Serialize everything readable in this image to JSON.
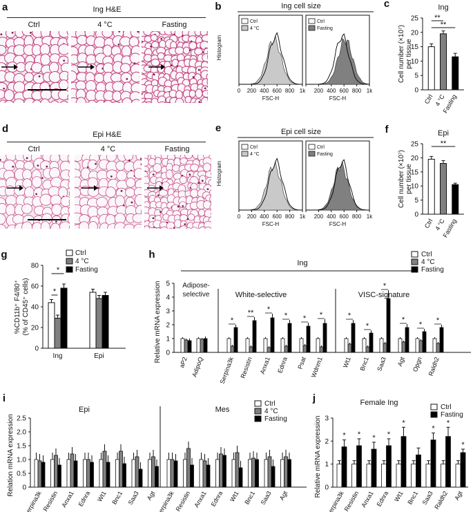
{
  "panels": {
    "a": {
      "letter": "a",
      "title": "Ing H&E",
      "labels": [
        "Ctrl",
        "4 °C",
        "Fasting"
      ]
    },
    "b": {
      "letter": "b",
      "title": "Ing cell size",
      "ylabel": "Histogram",
      "xlabel": "FSC-H",
      "ticks": [
        "0",
        "200",
        "400",
        "600",
        "800",
        "1k"
      ],
      "left_legend": [
        "Ctrl",
        "4 °C"
      ],
      "right_legend": [
        "Ctrl",
        "Fasting"
      ]
    },
    "c": {
      "letter": "c",
      "title": "Ing",
      "ylabel": "Cell number (×10⁷) per tissue"
    },
    "d": {
      "letter": "d",
      "title": "Epi H&E",
      "labels": [
        "Ctrl",
        "4 °C",
        "Fasting"
      ]
    },
    "e": {
      "letter": "e",
      "title": "Epi cell size",
      "ylabel": "Histogram",
      "xlabel": "FSC-H",
      "ticks": [
        "0",
        "200",
        "400",
        "600",
        "800",
        "1k"
      ],
      "left_legend": [
        "Ctrl",
        "4 °C"
      ],
      "right_legend": [
        "Ctrl",
        "Fasting"
      ]
    },
    "f": {
      "letter": "f",
      "title": "Epi",
      "ylabel": "Cell number (×10⁷) per tissue"
    },
    "g": {
      "letter": "g",
      "ylabel": "%CD11b⁺ F4/80⁺ (% of CD45⁺ cells)"
    },
    "h": {
      "letter": "h",
      "title": "Ing",
      "ylabel": "Relative mRNA expression",
      "groups": [
        "Adipose-selective",
        "White-selective",
        "VISC-signature"
      ]
    },
    "i": {
      "letter": "i",
      "ylabel": "Relation mRNA expression",
      "groups": [
        "Epi",
        "Mes"
      ]
    },
    "j": {
      "letter": "j",
      "title": "Female Ing",
      "ylabel": "Relative mRNA expression"
    }
  },
  "colors": {
    "ctrl": "#ffffff",
    "cold": "#808080",
    "fasting": "#000000",
    "he_bg": "#f3e9ef",
    "he_line": "#c23f7d"
  },
  "chart_data": [
    {
      "id": "c",
      "type": "bar",
      "title": "Ing",
      "ylabel": "Cell number (×10⁷) per tissue",
      "categories": [
        "Ctrl",
        "4 °C",
        "Fasting"
      ],
      "values": [
        15,
        19.5,
        11.5
      ],
      "errors": [
        1,
        1,
        1.2
      ],
      "ylim": [
        0,
        25
      ],
      "yticks": [
        "0",
        "5",
        "10",
        "15",
        "20",
        "25"
      ],
      "significance": [
        {
          "label": "**",
          "from": 0,
          "to": 1
        },
        {
          "label": "**",
          "from": 0,
          "to": 2
        }
      ]
    },
    {
      "id": "f",
      "type": "bar",
      "title": "Epi",
      "ylabel": "Cell number (×10⁷) per tissue",
      "categories": [
        "Ctrl",
        "4 °C",
        "Fasting"
      ],
      "values": [
        19.5,
        18,
        10.5
      ],
      "errors": [
        1,
        1,
        0.5
      ],
      "ylim": [
        0,
        25
      ],
      "yticks": [
        "0",
        "5",
        "10",
        "15",
        "20",
        "25"
      ],
      "significance": [
        {
          "label": "**",
          "from": 0,
          "to": 2
        }
      ]
    },
    {
      "id": "g",
      "type": "bar",
      "ylabel": "%CD11b⁺ F4/80⁺ (% of CD45⁺ cells)",
      "categories": [
        "Ing",
        "Epi"
      ],
      "series": [
        {
          "name": "Ctrl",
          "values": [
            44,
            54
          ],
          "errors": [
            3,
            3
          ]
        },
        {
          "name": "4 °C",
          "values": [
            29,
            48
          ],
          "errors": [
            3,
            3
          ]
        },
        {
          "name": "Fasting",
          "values": [
            58,
            51
          ],
          "errors": [
            4,
            3
          ]
        }
      ],
      "ylim": [
        0,
        80
      ],
      "yticks": [
        "0",
        "20",
        "40",
        "60",
        "80"
      ],
      "significance": [
        {
          "label": "*",
          "group": 0,
          "from": 0,
          "to": 1
        },
        {
          "label": "*",
          "group": 0,
          "from": 0,
          "to": 2
        }
      ]
    },
    {
      "id": "h",
      "type": "bar",
      "title": "Ing",
      "ylabel": "Relative mRNA expression",
      "categories": [
        "aP2",
        "AdipoQ",
        "Serpina3k",
        "Resistin",
        "Anxa1",
        "Ednra",
        "Psat",
        "Wdnm1",
        "Wt1",
        "Bnc1",
        "Saa3",
        "Agt",
        "Opgn",
        "Raldh2"
      ],
      "series": [
        {
          "name": "Ctrl",
          "values": [
            1,
            1,
            1,
            1,
            1,
            1,
            1,
            1,
            1,
            1,
            1,
            1,
            1,
            1
          ]
        },
        {
          "name": "4 °C",
          "values": [
            0.9,
            0.95,
            0.45,
            0.4,
            0.35,
            0.45,
            0.5,
            0.4,
            0.6,
            0.4,
            0.65,
            0.75,
            0.85,
            0.65
          ]
        },
        {
          "name": "Fasting",
          "values": [
            0.85,
            1,
            1.8,
            2.3,
            2.5,
            2.1,
            1.9,
            2.1,
            2.1,
            1.4,
            3.9,
            1.8,
            1.5,
            1.8
          ]
        }
      ],
      "errors": [
        0.15,
        0.15,
        0.2,
        0.25,
        0.3,
        0.25,
        0.25,
        0.3,
        0.25,
        0.2,
        0.6,
        0.25,
        0.2,
        0.2
      ],
      "ylim": [
        0,
        5
      ],
      "yticks": [
        "0",
        "1",
        "2",
        "3",
        "4",
        "5"
      ],
      "significance_labels": [
        "*",
        "*",
        "*",
        "**",
        "*",
        "*",
        "*",
        "*",
        "*",
        "*",
        "*",
        "*",
        "*",
        "*"
      ]
    },
    {
      "id": "i",
      "type": "bar",
      "ylabel": "Relation mRNA expression",
      "panels": [
        {
          "name": "Epi",
          "categories": [
            "Serpina3k",
            "Resistin",
            "Anxa1",
            "Ednra",
            "Wt1",
            "Bnc1",
            "Saa3",
            "Agt"
          ],
          "series": [
            {
              "name": "Ctrl",
              "values": [
                1,
                1,
                1,
                1,
                1,
                1,
                1,
                1
              ]
            },
            {
              "name": "4 °C",
              "values": [
                0.95,
                1.15,
                1.2,
                1.0,
                1.3,
                1.3,
                1.1,
                1.1
              ]
            },
            {
              "name": "Fasting",
              "values": [
                0.9,
                0.8,
                0.95,
                0.9,
                0.9,
                0.85,
                0.65,
                0.75
              ]
            }
          ]
        },
        {
          "name": "Mes",
          "categories": [
            "Serpina3k",
            "Resistin",
            "Anxa1",
            "Ednra",
            "Wt1",
            "Bnc1",
            "Saa3",
            "Agt"
          ],
          "series": [
            {
              "name": "Ctrl",
              "values": [
                1,
                1,
                1,
                1,
                1,
                1,
                1,
                1
              ]
            },
            {
              "name": "4 °C",
              "values": [
                1,
                1.4,
                0.95,
                1.2,
                1.25,
                1.05,
                1.1,
                1.1
              ]
            },
            {
              "name": "Fasting",
              "values": [
                0.95,
                0.8,
                0.8,
                1.15,
                0.7,
                1.0,
                0.75,
                1.0
              ]
            }
          ]
        }
      ],
      "ylim": [
        0,
        2.5
      ],
      "yticks": [
        "0",
        "0.5",
        "1.0",
        "1.5",
        "2.0",
        "2.5"
      ],
      "legend": [
        "Ctrl",
        "4 °C",
        "Fasting"
      ]
    },
    {
      "id": "j",
      "type": "bar",
      "title": "Female Ing",
      "ylabel": "Relative mRNA expression",
      "categories": [
        "Serpina3k",
        "Resistin",
        "Anxa1",
        "Ednra",
        "Wt1",
        "Bnc1",
        "Saa3",
        "Raldh2",
        "Agt"
      ],
      "series": [
        {
          "name": "Ctrl",
          "values": [
            1,
            1,
            1,
            1,
            1,
            1,
            1,
            1,
            1
          ]
        },
        {
          "name": "Fasting",
          "values": [
            1.75,
            1.8,
            1.65,
            1.8,
            2.2,
            1.4,
            2.05,
            2.2,
            1.5
          ]
        }
      ],
      "errors": [
        0.3,
        0.3,
        0.3,
        0.3,
        0.4,
        0.3,
        0.3,
        0.4,
        0.15
      ],
      "ylim": [
        0,
        3
      ],
      "yticks": [
        "0",
        "1",
        "2",
        "3"
      ],
      "significance_labels": [
        "*",
        "*",
        "*",
        "*",
        "*",
        "",
        "*",
        "*",
        "*"
      ]
    }
  ]
}
